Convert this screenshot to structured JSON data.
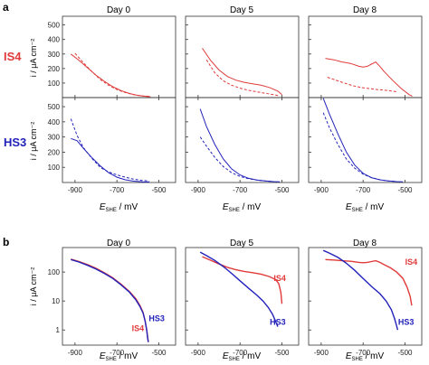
{
  "panel_a": {
    "label": "a",
    "column_titles": [
      "Day 0",
      "Day 5",
      "Day 8"
    ],
    "row_labels": [
      {
        "text": "IS4",
        "color": "#e03a3a"
      },
      {
        "text": "HS3",
        "color": "#2222bb"
      }
    ]
  },
  "panel_b": {
    "label": "b",
    "column_titles": [
      "Day 0",
      "Day 5",
      "Day 8"
    ]
  },
  "axes": {
    "x_label_symbol": "E",
    "x_label_sub": "SHE",
    "x_label_unit": " / mV",
    "y_label_a": "i / μA cm⁻²",
    "y_label_b": "i / μA cm⁻²",
    "x_ticks": [
      "-900",
      "-700",
      "-500"
    ],
    "y_ticks_a": [
      "500",
      "400",
      "300",
      "200",
      "100"
    ],
    "y_ticks_b": [
      "100",
      "10",
      "1"
    ]
  },
  "colors": {
    "IS4": "#e03a3a",
    "HS3": "#2222bb"
  },
  "chart_data": [
    {
      "type": "line",
      "panel": "a",
      "row": "IS4",
      "day": "Day 0",
      "xlim": [
        -960,
        -420
      ],
      "ylim": [
        0,
        560
      ],
      "series": [
        {
          "style": "solid",
          "points": [
            [
              -920,
              300
            ],
            [
              -880,
              255
            ],
            [
              -840,
              205
            ],
            [
              -800,
              155
            ],
            [
              -760,
              112
            ],
            [
              -720,
              75
            ],
            [
              -680,
              48
            ],
            [
              -640,
              28
            ],
            [
              -600,
              15
            ],
            [
              -560,
              8
            ],
            [
              -540,
              6
            ]
          ]
        },
        {
          "style": "dashed",
          "points": [
            [
              -900,
              305
            ],
            [
              -860,
              240
            ],
            [
              -820,
              180
            ],
            [
              -780,
              125
            ],
            [
              -740,
              85
            ],
            [
              -700,
              55
            ],
            [
              -660,
              35
            ],
            [
              -620,
              20
            ],
            [
              -580,
              12
            ],
            [
              -545,
              8
            ]
          ]
        }
      ]
    },
    {
      "type": "line",
      "panel": "a",
      "row": "IS4",
      "day": "Day 5",
      "xlim": [
        -960,
        -420
      ],
      "ylim": [
        0,
        560
      ],
      "series": [
        {
          "style": "solid",
          "points": [
            [
              -880,
              340
            ],
            [
              -840,
              255
            ],
            [
              -800,
              190
            ],
            [
              -760,
              145
            ],
            [
              -720,
              120
            ],
            [
              -680,
              105
            ],
            [
              -640,
              95
            ],
            [
              -600,
              85
            ],
            [
              -560,
              70
            ],
            [
              -520,
              45
            ],
            [
              -500,
              20
            ]
          ]
        },
        {
          "style": "dashed",
          "points": [
            [
              -860,
              260
            ],
            [
              -820,
              170
            ],
            [
              -780,
              115
            ],
            [
              -740,
              85
            ],
            [
              -700,
              65
            ],
            [
              -660,
              50
            ],
            [
              -620,
              40
            ],
            [
              -580,
              30
            ],
            [
              -540,
              20
            ],
            [
              -510,
              12
            ]
          ]
        }
      ]
    },
    {
      "type": "line",
      "panel": "a",
      "row": "IS4",
      "day": "Day 8",
      "xlim": [
        -960,
        -420
      ],
      "ylim": [
        0,
        560
      ],
      "series": [
        {
          "style": "solid",
          "points": [
            [
              -880,
              270
            ],
            [
              -840,
              260
            ],
            [
              -800,
              245
            ],
            [
              -760,
              235
            ],
            [
              -720,
              215
            ],
            [
              -700,
              210
            ],
            [
              -680,
              215
            ],
            [
              -660,
              230
            ],
            [
              -640,
              245
            ],
            [
              -620,
              215
            ],
            [
              -600,
              180
            ],
            [
              -560,
              120
            ],
            [
              -520,
              65
            ],
            [
              -480,
              20
            ],
            [
              -465,
              10
            ]
          ]
        },
        {
          "style": "dashed",
          "points": [
            [
              -870,
              140
            ],
            [
              -830,
              120
            ],
            [
              -790,
              100
            ],
            [
              -750,
              82
            ],
            [
              -710,
              70
            ],
            [
              -670,
              62
            ],
            [
              -630,
              55
            ],
            [
              -590,
              50
            ],
            [
              -560,
              45
            ],
            [
              -540,
              40
            ]
          ]
        }
      ]
    },
    {
      "type": "line",
      "panel": "a",
      "row": "HS3",
      "day": "Day 0",
      "xlim": [
        -960,
        -420
      ],
      "ylim": [
        0,
        560
      ],
      "series": [
        {
          "style": "solid",
          "points": [
            [
              -920,
              290
            ],
            [
              -890,
              275
            ],
            [
              -860,
              225
            ],
            [
              -820,
              165
            ],
            [
              -780,
              110
            ],
            [
              -740,
              65
            ],
            [
              -700,
              35
            ],
            [
              -660,
              18
            ],
            [
              -620,
              9
            ],
            [
              -580,
              5
            ],
            [
              -545,
              3
            ]
          ]
        },
        {
          "style": "dashed",
          "points": [
            [
              -920,
              420
            ],
            [
              -890,
              310
            ],
            [
              -860,
              230
            ],
            [
              -820,
              160
            ],
            [
              -780,
              100
            ],
            [
              -740,
              70
            ],
            [
              -700,
              50
            ],
            [
              -660,
              35
            ],
            [
              -620,
              22
            ],
            [
              -580,
              14
            ],
            [
              -545,
              10
            ]
          ]
        }
      ]
    },
    {
      "type": "line",
      "panel": "a",
      "row": "HS3",
      "day": "Day 5",
      "xlim": [
        -960,
        -420
      ],
      "ylim": [
        0,
        560
      ],
      "series": [
        {
          "style": "solid",
          "points": [
            [
              -890,
              485
            ],
            [
              -860,
              370
            ],
            [
              -820,
              250
            ],
            [
              -780,
              155
            ],
            [
              -740,
              90
            ],
            [
              -700,
              50
            ],
            [
              -660,
              28
            ],
            [
              -620,
              16
            ],
            [
              -580,
              10
            ],
            [
              -540,
              6
            ],
            [
              -510,
              4
            ]
          ]
        },
        {
          "style": "dashed",
          "points": [
            [
              -890,
              300
            ],
            [
              -860,
              240
            ],
            [
              -820,
              165
            ],
            [
              -780,
              105
            ],
            [
              -740,
              65
            ],
            [
              -700,
              40
            ],
            [
              -660,
              25
            ],
            [
              -620,
              16
            ],
            [
              -580,
              10
            ],
            [
              -540,
              6
            ]
          ]
        }
      ]
    },
    {
      "type": "line",
      "panel": "a",
      "row": "HS3",
      "day": "Day 8",
      "xlim": [
        -960,
        -420
      ],
      "ylim": [
        0,
        560
      ],
      "series": [
        {
          "style": "solid",
          "points": [
            [
              -890,
              555
            ],
            [
              -860,
              450
            ],
            [
              -820,
              320
            ],
            [
              -780,
              200
            ],
            [
              -740,
              115
            ],
            [
              -700,
              60
            ],
            [
              -660,
              32
            ],
            [
              -620,
              18
            ],
            [
              -580,
              10
            ],
            [
              -540,
              6
            ],
            [
              -510,
              4
            ]
          ]
        },
        {
          "style": "dashed",
          "points": [
            [
              -890,
              460
            ],
            [
              -860,
              360
            ],
            [
              -820,
              250
            ],
            [
              -780,
              155
            ],
            [
              -740,
              95
            ],
            [
              -700,
              55
            ],
            [
              -660,
              32
            ],
            [
              -620,
              18
            ],
            [
              -580,
              10
            ],
            [
              -545,
              7
            ]
          ]
        }
      ]
    },
    {
      "type": "line",
      "panel": "b",
      "day": "Day 0",
      "y_scale": "log",
      "xlim": [
        -960,
        -420
      ],
      "ylim": [
        0.3,
        700
      ],
      "labels": [
        {
          "text": "IS4",
          "color": "#e03a3a",
          "x": -600,
          "y": 0.9
        },
        {
          "text": "HS3",
          "color": "#2222bb",
          "x": -510,
          "y": 2.0
        }
      ],
      "series": [
        {
          "name": "IS4",
          "points": [
            [
              -920,
              280
            ],
            [
              -880,
              230
            ],
            [
              -840,
              180
            ],
            [
              -800,
              135
            ],
            [
              -760,
              95
            ],
            [
              -720,
              63
            ],
            [
              -680,
              38
            ],
            [
              -640,
              21
            ],
            [
              -610,
              12
            ],
            [
              -590,
              7
            ],
            [
              -575,
              4
            ],
            [
              -565,
              2
            ],
            [
              -558,
              1
            ],
            [
              -553,
              0.55
            ],
            [
              -550,
              0.4
            ]
          ]
        },
        {
          "name": "HS3",
          "points": [
            [
              -920,
              270
            ],
            [
              -880,
              220
            ],
            [
              -840,
              170
            ],
            [
              -800,
              128
            ],
            [
              -760,
              90
            ],
            [
              -720,
              60
            ],
            [
              -680,
              36
            ],
            [
              -640,
              20
            ],
            [
              -610,
              11
            ],
            [
              -590,
              6.5
            ],
            [
              -575,
              3.8
            ],
            [
              -565,
              2
            ],
            [
              -558,
              1
            ],
            [
              -553,
              0.5
            ],
            [
              -550,
              0.38
            ]
          ]
        }
      ]
    },
    {
      "type": "line",
      "panel": "b",
      "day": "Day 5",
      "y_scale": "log",
      "xlim": [
        -960,
        -420
      ],
      "ylim": [
        0.3,
        700
      ],
      "labels": [
        {
          "text": "IS4",
          "color": "#e03a3a",
          "x": -510,
          "y": 50
        },
        {
          "text": "HS3",
          "color": "#2222bb",
          "x": -520,
          "y": 1.5
        }
      ],
      "series": [
        {
          "name": "IS4",
          "points": [
            [
              -880,
              340
            ],
            [
              -840,
              255
            ],
            [
              -800,
              190
            ],
            [
              -760,
              145
            ],
            [
              -720,
              120
            ],
            [
              -680,
              105
            ],
            [
              -640,
              95
            ],
            [
              -600,
              85
            ],
            [
              -560,
              70
            ],
            [
              -530,
              55
            ],
            [
              -515,
              40
            ],
            [
              -505,
              20
            ],
            [
              -500,
              8
            ]
          ]
        },
        {
          "name": "HS3",
          "points": [
            [
              -890,
              485
            ],
            [
              -860,
              370
            ],
            [
              -820,
              250
            ],
            [
              -780,
              155
            ],
            [
              -740,
              90
            ],
            [
              -700,
              50
            ],
            [
              -660,
              28
            ],
            [
              -620,
              16
            ],
            [
              -590,
              10
            ],
            [
              -565,
              6
            ],
            [
              -545,
              3.5
            ],
            [
              -530,
              2
            ],
            [
              -520,
              1.3
            ]
          ]
        }
      ]
    },
    {
      "type": "line",
      "panel": "b",
      "day": "Day 8",
      "y_scale": "log",
      "xlim": [
        -960,
        -420
      ],
      "ylim": [
        0.3,
        700
      ],
      "labels": [
        {
          "text": "IS4",
          "color": "#e03a3a",
          "x": -470,
          "y": 180
        },
        {
          "text": "HS3",
          "color": "#2222bb",
          "x": -495,
          "y": 1.5
        }
      ],
      "series": [
        {
          "name": "IS4",
          "points": [
            [
              -880,
              270
            ],
            [
              -840,
              260
            ],
            [
              -800,
              245
            ],
            [
              -760,
              235
            ],
            [
              -720,
              215
            ],
            [
              -700,
              210
            ],
            [
              -680,
              215
            ],
            [
              -660,
              230
            ],
            [
              -640,
              245
            ],
            [
              -620,
              215
            ],
            [
              -600,
              180
            ],
            [
              -570,
              140
            ],
            [
              -540,
              100
            ],
            [
              -510,
              60
            ],
            [
              -490,
              30
            ],
            [
              -475,
              14
            ],
            [
              -468,
              7
            ]
          ]
        },
        {
          "name": "HS3",
          "points": [
            [
              -890,
              555
            ],
            [
              -860,
              450
            ],
            [
              -820,
              320
            ],
            [
              -780,
              200
            ],
            [
              -740,
              115
            ],
            [
              -700,
              60
            ],
            [
              -660,
              32
            ],
            [
              -620,
              18
            ],
            [
              -590,
              10
            ],
            [
              -565,
              5
            ],
            [
              -550,
              2.5
            ],
            [
              -540,
              1.4
            ],
            [
              -535,
              1.0
            ]
          ]
        }
      ]
    }
  ]
}
